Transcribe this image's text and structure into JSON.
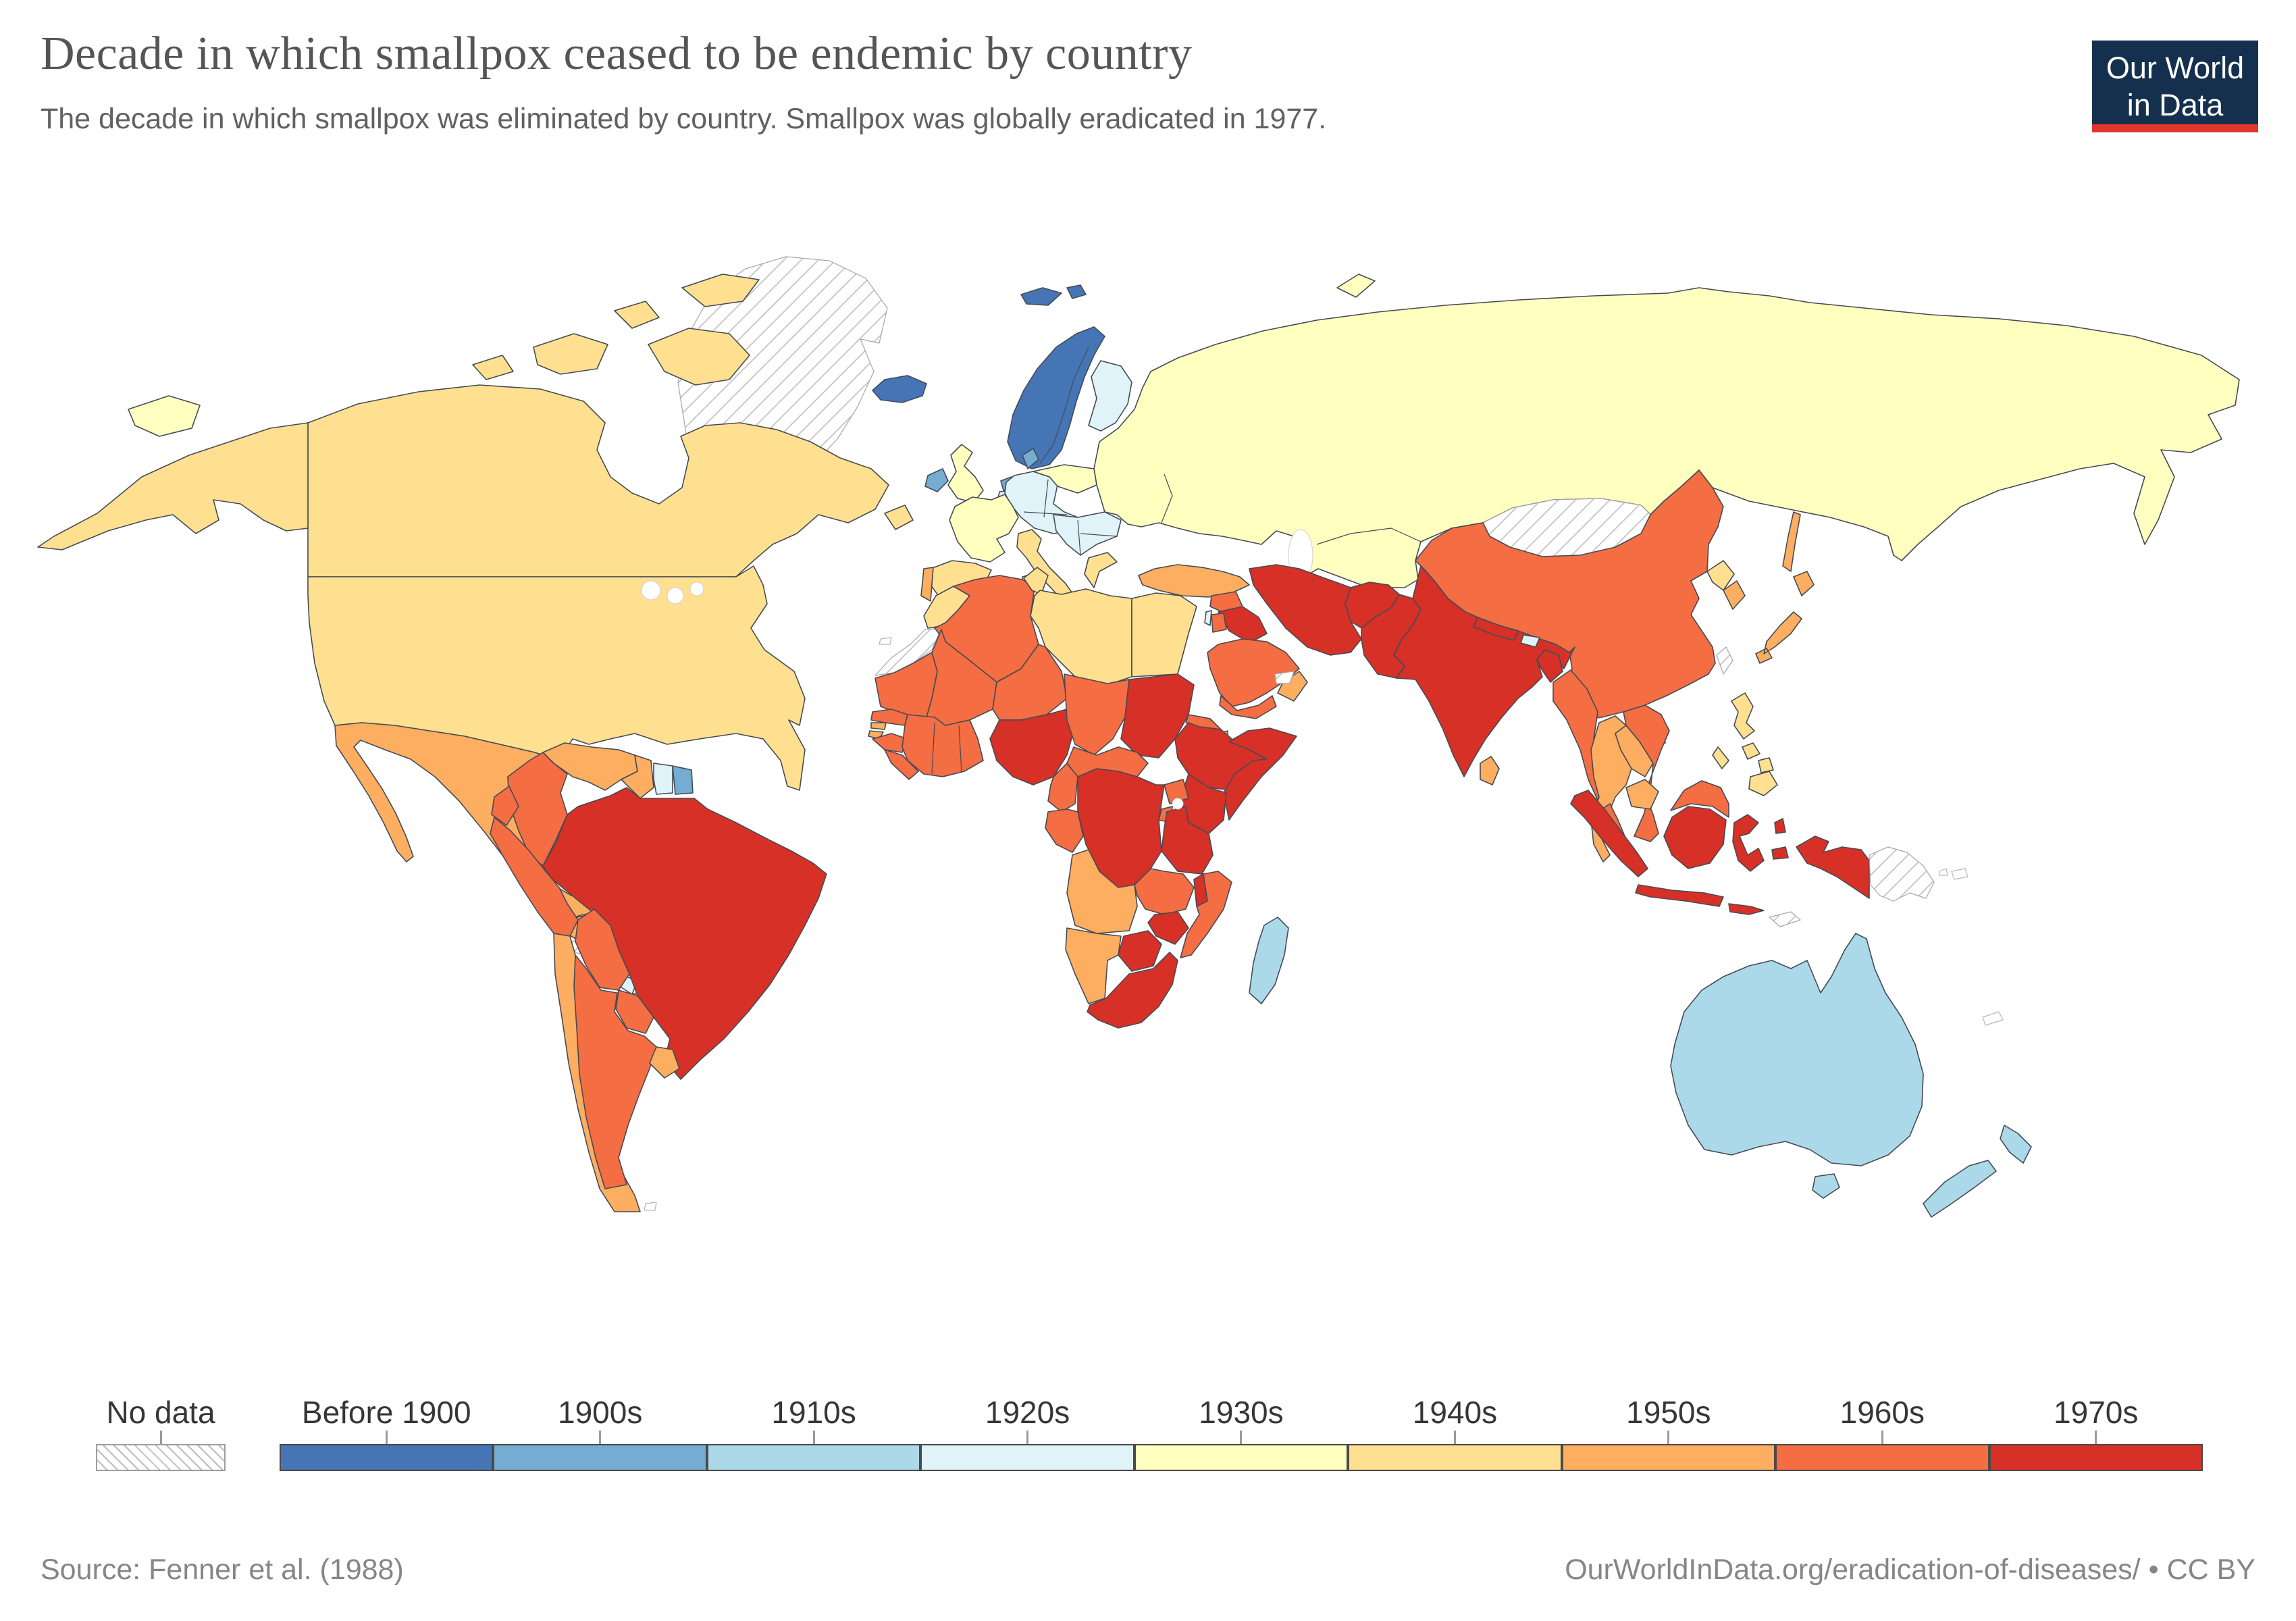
{
  "header": {
    "title": "Decade in which smallpox ceased to be endemic by country",
    "subtitle": "The decade in which smallpox was eliminated by country. Smallpox was globally eradicated in 1977."
  },
  "logo": {
    "line1": "Our World",
    "line2": "in Data",
    "bg_color": "#15304e",
    "accent_color": "#e0362c"
  },
  "legend": {
    "no_data": {
      "key": "no_data",
      "label": "No data"
    },
    "categories": [
      {
        "key": "before_1900",
        "label": "Before 1900",
        "color": "#4575b4"
      },
      {
        "key": "1900s",
        "label": "1900s",
        "color": "#74add1"
      },
      {
        "key": "1910s",
        "label": "1910s",
        "color": "#abd9e9"
      },
      {
        "key": "1920s",
        "label": "1920s",
        "color": "#e0f3f8"
      },
      {
        "key": "1930s",
        "label": "1930s",
        "color": "#ffffbf"
      },
      {
        "key": "1940s",
        "label": "1940s",
        "color": "#fee090"
      },
      {
        "key": "1950s",
        "label": "1950s",
        "color": "#fdae61"
      },
      {
        "key": "1960s",
        "label": "1960s",
        "color": "#f46d43"
      },
      {
        "key": "1970s",
        "label": "1970s",
        "color": "#d73027"
      }
    ]
  },
  "footer": {
    "source": "Source: Fenner et al. (1988)",
    "credit": "OurWorldInData.org/eradication-of-diseases/ • CC BY"
  },
  "map": {
    "regions": {
      "greenland": "no_data",
      "canada": "1940s",
      "alaska": "1940s",
      "usa": "1940s",
      "mexico": "1950s",
      "guatemala": "1950s",
      "belize": "1930s",
      "honduras": "1950s",
      "el_salvador": "1950s",
      "nicaragua": "1920s",
      "costa_rica": "1920s",
      "panama": "1920s",
      "cuba": "no_data",
      "colombia": "1960s",
      "venezuela": "1950s",
      "guyana": "1950s",
      "suriname": "1920s",
      "french_guiana": "1900s",
      "brazil": "1970s",
      "ecuador": "1960s",
      "peru": "1960s",
      "bolivia": "1960s",
      "paraguay": "1960s",
      "chile": "1950s",
      "argentina": "1960s",
      "uruguay": "1950s",
      "iceland": "before_1900",
      "svalbard": "before_1900",
      "scandinavia": "before_1900",
      "finland": "1920s",
      "uk": "1930s",
      "ireland": "1900s",
      "denmark": "1900s",
      "netherlands": "1900s",
      "belgium": "1920s",
      "central_europe": "1920s",
      "poland": "1930s",
      "france": "1930s",
      "spain": "1940s",
      "portugal": "1950s",
      "italy": "1940s",
      "balkans": "1920s",
      "greece": "1940s",
      "soviet_union": "1930s",
      "turkey": "1950s",
      "cyprus": "1940s",
      "syria": "1960s",
      "iraq": "1970s",
      "israel": "1920s",
      "jordan": "1960s",
      "saudi_arabia": "1960s",
      "yemen": "1960s",
      "oman": "1950s",
      "uae": "no_data",
      "iran": "1970s",
      "afghanistan": "1970s",
      "pakistan": "1970s",
      "morocco": "1940s",
      "western_sahara": "no_data",
      "algeria": "1960s",
      "tunisia": "1940s",
      "libya": "1940s",
      "egypt": "1940s",
      "mauritania": "1960s",
      "mali": "1960s",
      "senegal": "1960s",
      "gambia": "1950s",
      "guinea_bissau": "1950s",
      "guinea": "1960s",
      "sierra_leone_liberia": "1960s",
      "west_africa": "1960s",
      "niger": "1960s",
      "nigeria": "1970s",
      "chad": "1960s",
      "sudan": "1970s",
      "eritrea": "1960s",
      "djibouti": "1950s",
      "ethiopia": "1970s",
      "somalia": "1970s",
      "kenya": "1970s",
      "uganda": "1960s",
      "rwanda_burundi": "1960s",
      "tanzania": "1970s",
      "drc": "1970s",
      "car": "1960s",
      "cameroon": "1960s",
      "gabon_congo": "1960s",
      "angola": "1950s",
      "zambia": "1960s",
      "malawi": "1970s",
      "mozambique": "1960s",
      "zimbabwe": "1970s",
      "botswana": "1970s",
      "namibia": "1950s",
      "south_africa": "1970s",
      "madagascar": "1910s",
      "mongolia": "no_data",
      "china": "1960s",
      "north_korea": "1940s",
      "south_korea": "1950s",
      "japan": "1950s",
      "sakhalin": "1950s",
      "taiwan": "no_data",
      "india": "1970s",
      "nepal": "1970s",
      "bhutan": "1920s",
      "bangladesh": "1970s",
      "sri_lanka": "1950s",
      "myanmar": "1960s",
      "thailand": "1950s",
      "laos": "1950s",
      "vietnam": "1960s",
      "cambodia": "1950s",
      "malaysia": "1960s",
      "philippines": "1940s",
      "indonesia": "1970s",
      "timor": "no_data",
      "papua_new_guinea": "no_data",
      "australia": "1910s",
      "new_zealand": "1910s"
    }
  }
}
